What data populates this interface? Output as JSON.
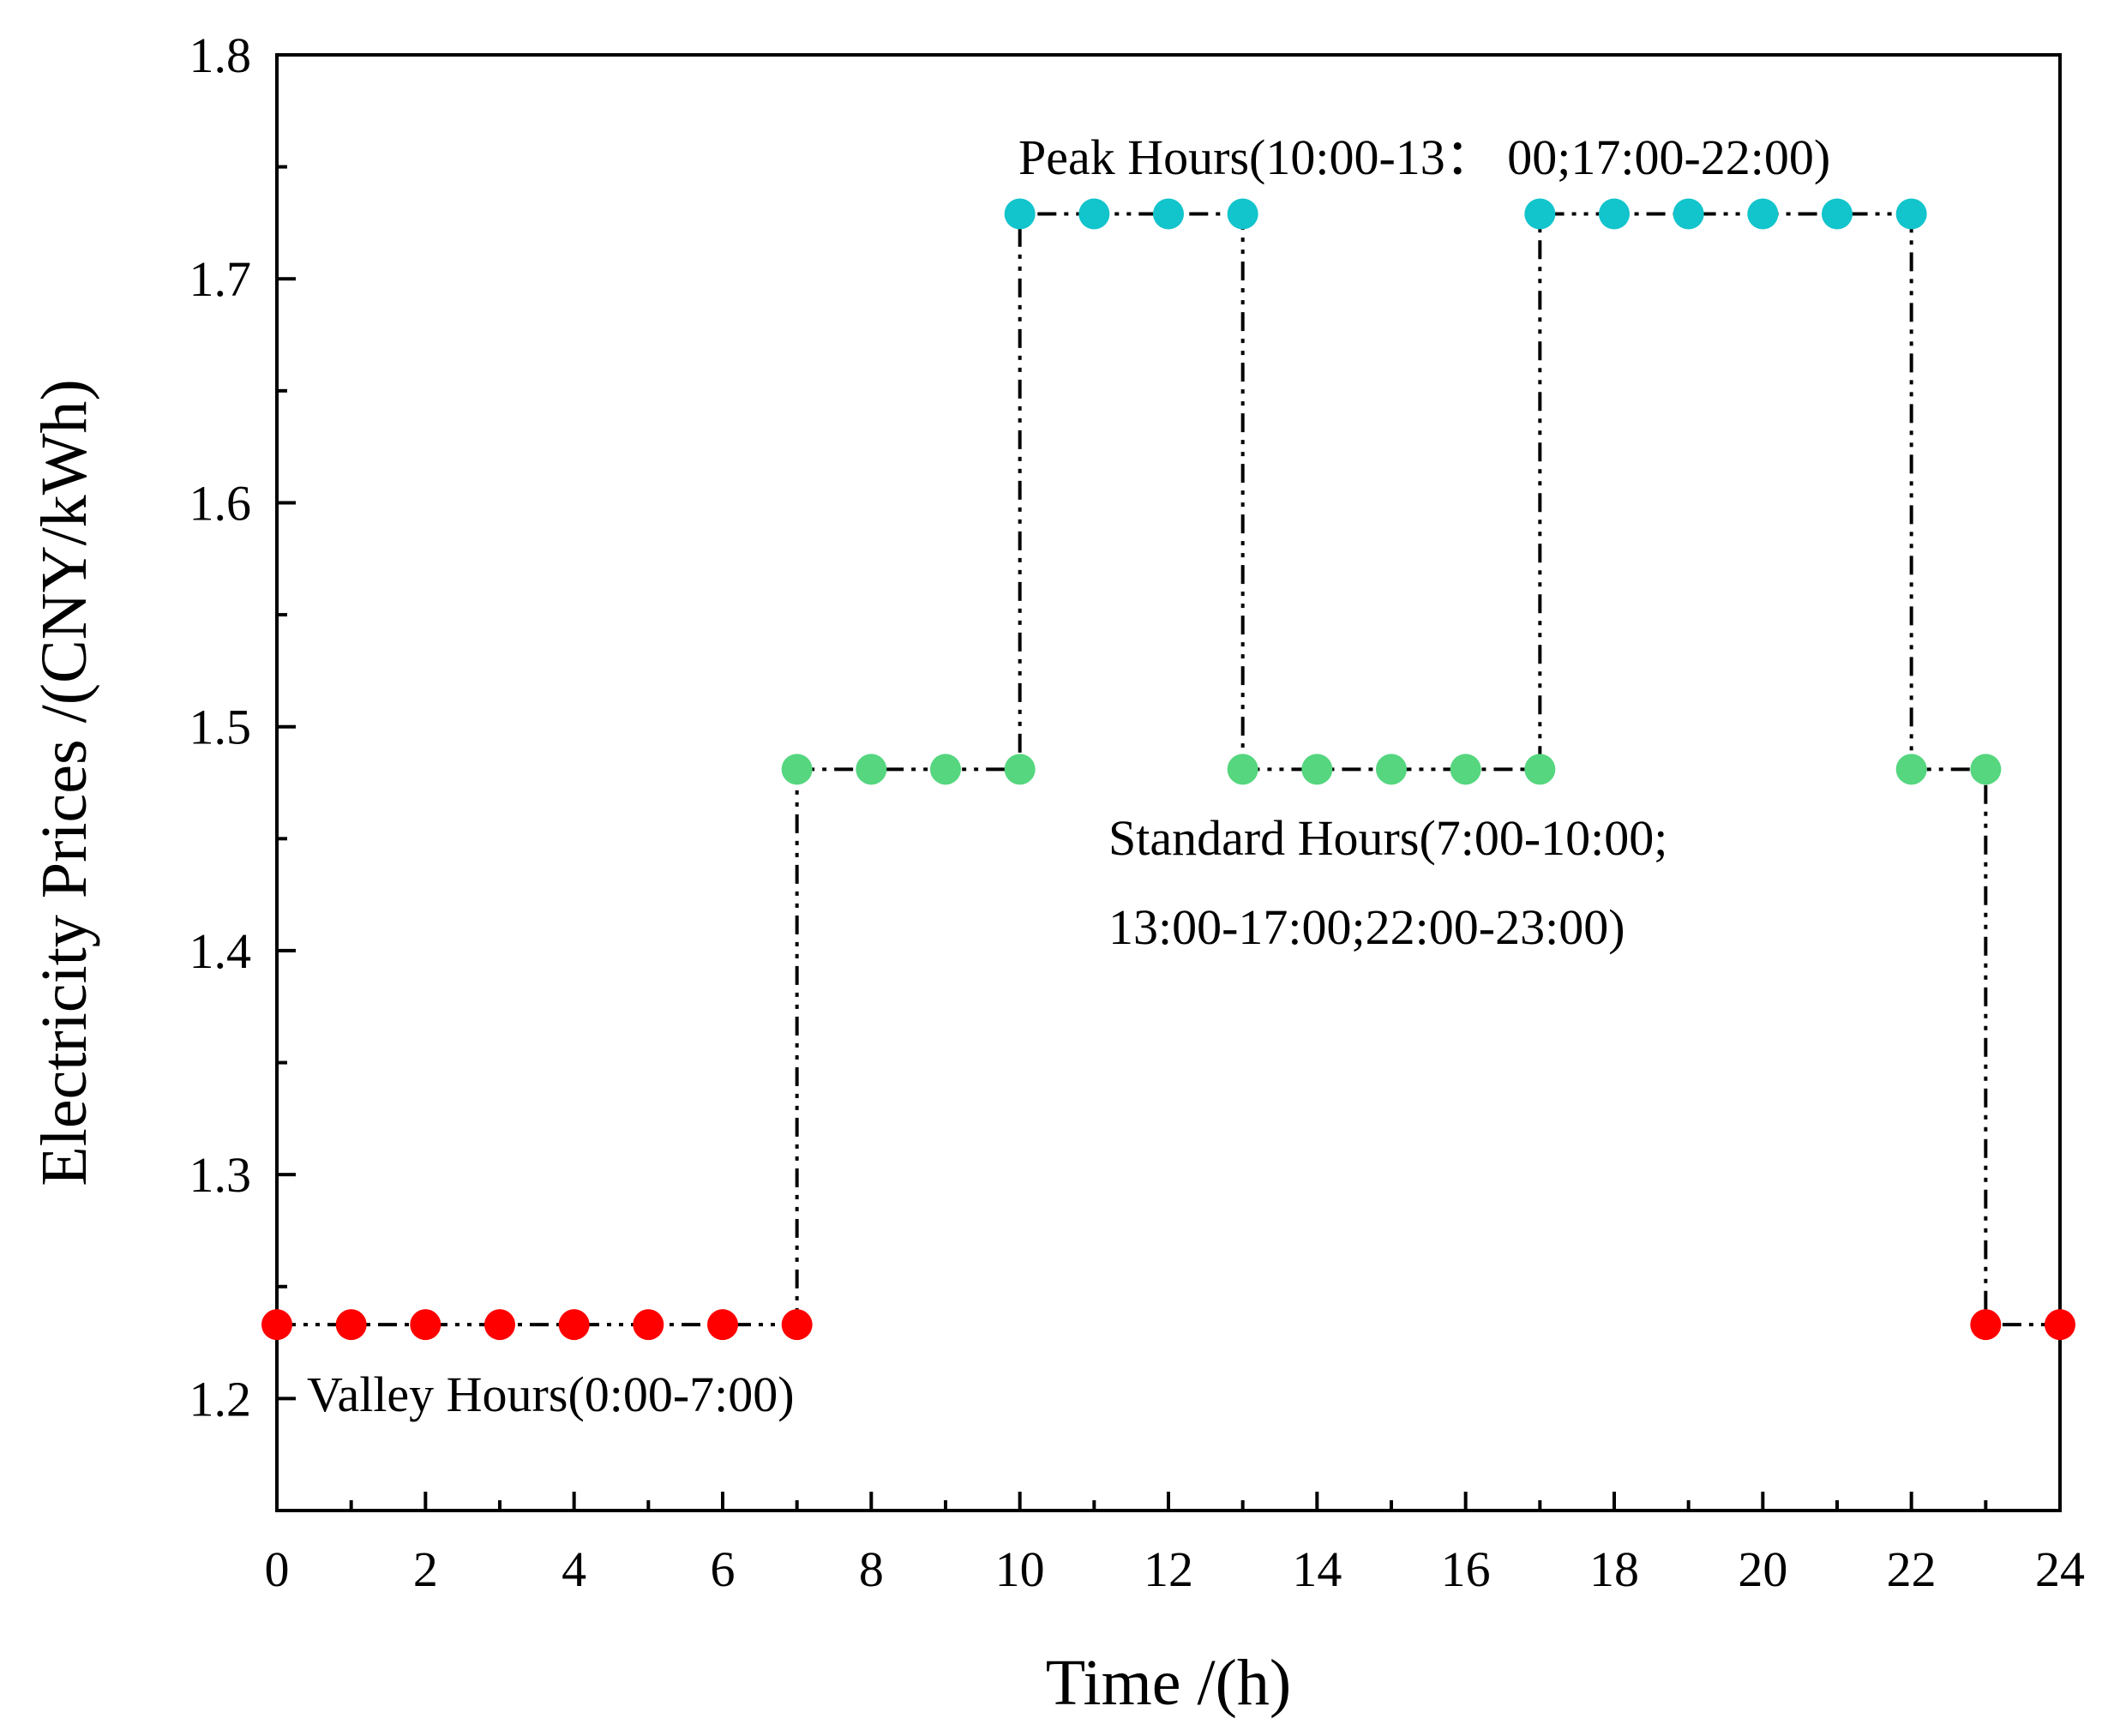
{
  "chart_data": {
    "type": "line",
    "title": "",
    "xlabel": "Time /(h)",
    "ylabel": "Electricity Prices /(CNY/kWh)",
    "xlim": [
      0,
      24
    ],
    "ylim": [
      1.15,
      1.8
    ],
    "x_ticks": [
      0,
      2,
      4,
      6,
      8,
      10,
      12,
      14,
      16,
      18,
      20,
      22,
      24
    ],
    "y_ticks": [
      1.2,
      1.3,
      1.4,
      1.5,
      1.6,
      1.7,
      1.8
    ],
    "grid": false,
    "line_style": "dash-dot-dot step",
    "x": [
      0,
      1,
      2,
      3,
      4,
      5,
      6,
      7,
      7,
      8,
      9,
      10,
      10,
      11,
      12,
      13,
      13,
      14,
      15,
      16,
      17,
      17,
      18,
      19,
      20,
      21,
      22,
      22,
      23,
      23,
      24
    ],
    "y": [
      1.233,
      1.233,
      1.233,
      1.233,
      1.233,
      1.233,
      1.233,
      1.233,
      1.481,
      1.481,
      1.481,
      1.481,
      1.729,
      1.729,
      1.729,
      1.729,
      1.481,
      1.481,
      1.481,
      1.481,
      1.481,
      1.729,
      1.729,
      1.729,
      1.729,
      1.729,
      1.729,
      1.481,
      1.481,
      1.233,
      1.233
    ],
    "series": [
      {
        "name": "Valley",
        "color": "#ff0000",
        "x": [
          0,
          1,
          2,
          3,
          4,
          5,
          6,
          7,
          23,
          24
        ],
        "y": [
          1.233,
          1.233,
          1.233,
          1.233,
          1.233,
          1.233,
          1.233,
          1.233,
          1.233,
          1.233
        ]
      },
      {
        "name": "Standard",
        "color": "#55d67f",
        "x": [
          7,
          8,
          9,
          10,
          13,
          14,
          15,
          16,
          17,
          22,
          23
        ],
        "y": [
          1.481,
          1.481,
          1.481,
          1.481,
          1.481,
          1.481,
          1.481,
          1.481,
          1.481,
          1.481,
          1.481
        ]
      },
      {
        "name": "Peak",
        "color": "#12c4cc",
        "x": [
          10,
          11,
          12,
          13,
          17,
          18,
          19,
          20,
          21,
          22
        ],
        "y": [
          1.729,
          1.729,
          1.729,
          1.729,
          1.729,
          1.729,
          1.729,
          1.729,
          1.729,
          1.729
        ]
      }
    ],
    "annotations": [
      {
        "name": "peak",
        "lines": [
          "Peak Hours(10:00-13： 00;17:00-22:00)"
        ]
      },
      {
        "name": "standard",
        "lines": [
          "Standard Hours(7:00-10:00;",
          "13:00-17:00;22:00-23:00)"
        ]
      },
      {
        "name": "valley",
        "lines": [
          "Valley Hours(0:00-7:00)"
        ]
      }
    ]
  }
}
